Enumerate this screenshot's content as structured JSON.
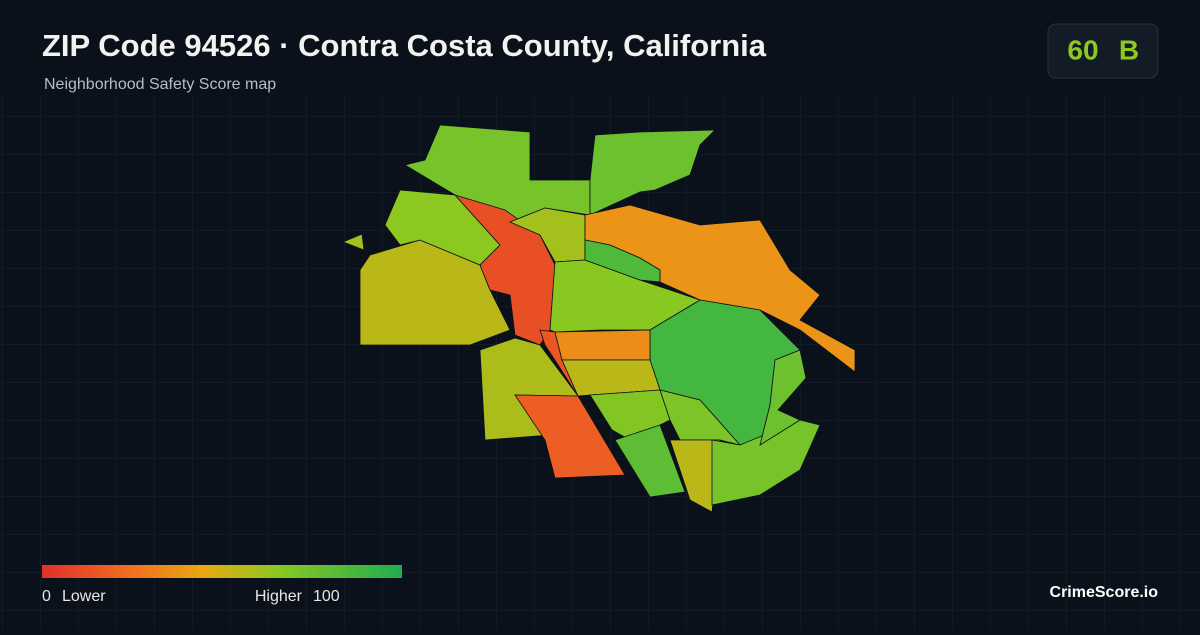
{
  "header": {
    "title": "ZIP Code 94526 · Contra Costa County, California",
    "subtitle": "Neighborhood Safety Score map"
  },
  "badge": {
    "score": 60,
    "grade": "B"
  },
  "regions": [
    {
      "score": 72
    },
    {
      "score": 75
    },
    {
      "score": 55
    },
    {
      "score": 65
    },
    {
      "score": 12
    },
    {
      "score": 15
    },
    {
      "score": 60
    },
    {
      "score": 66
    },
    {
      "score": 38
    },
    {
      "score": 85
    },
    {
      "score": 88
    },
    {
      "score": 35
    },
    {
      "score": 55
    },
    {
      "score": 58
    },
    {
      "score": 18
    },
    {
      "score": 68
    },
    {
      "score": 80
    },
    {
      "score": 70
    },
    {
      "score": 55
    },
    {
      "score": 72
    },
    {
      "score": 75
    },
    {
      "score": 60
    }
  ],
  "legend": {
    "min": 0,
    "min_label": "Lower",
    "max_label": "Higher",
    "max": 100
  },
  "brand": "CrimeScore.io"
}
